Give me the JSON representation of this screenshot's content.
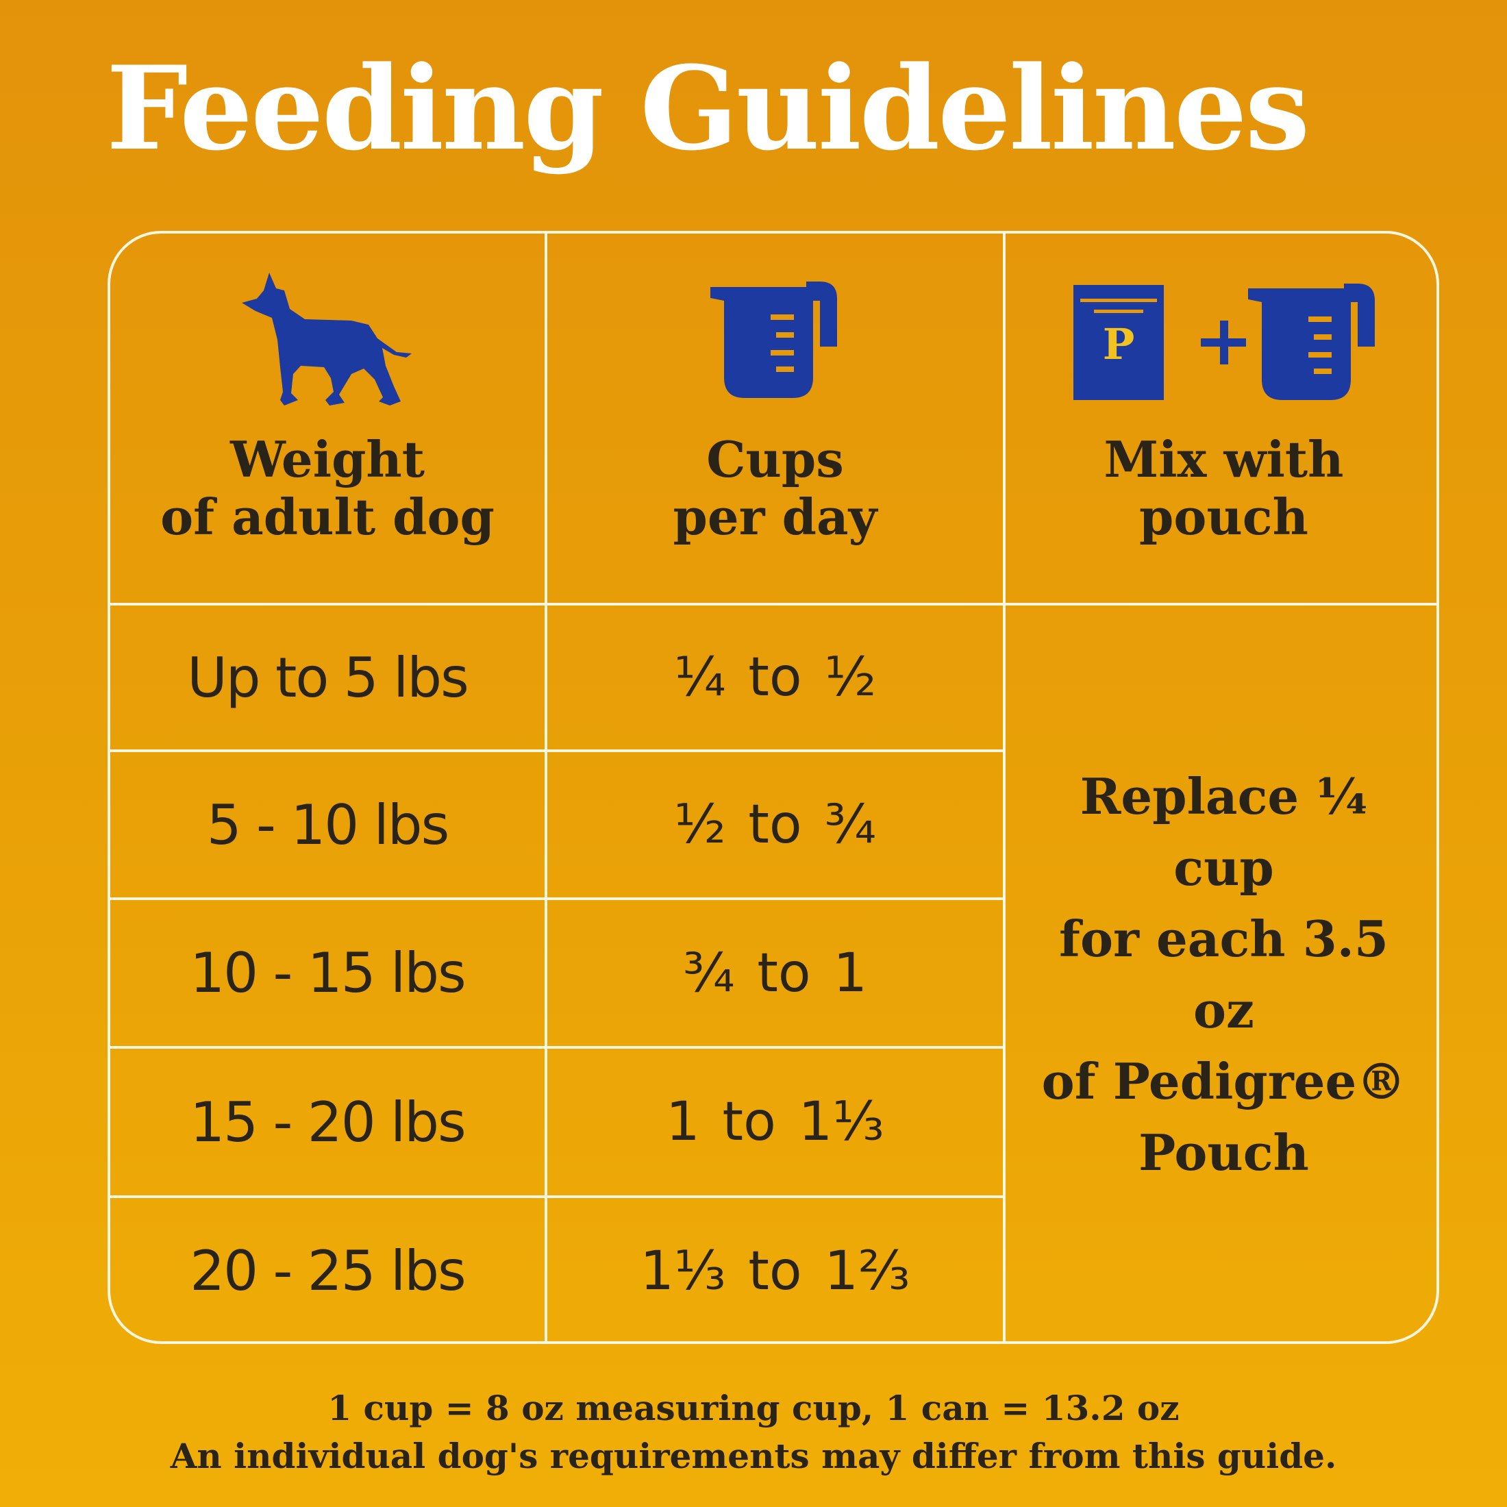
{
  "title": "Feeding Guidelines",
  "colors": {
    "background": "#e6990a",
    "icon": "#1c3aa0",
    "text": "#2a2418",
    "lines": "#fff6e0"
  },
  "headers": {
    "weight": {
      "icon": "dog-icon",
      "line1": "Weight",
      "line2": "of adult dog"
    },
    "cups": {
      "icon": "measuring-cup-icon",
      "line1": "Cups",
      "line2": "per day"
    },
    "mix": {
      "icon": "pouch-plus-cup-icon",
      "line1": "Mix with",
      "line2": "pouch",
      "pouch_letter": "P",
      "plus": "+"
    }
  },
  "rows": [
    {
      "weight": "Up to 5 lbs",
      "cups": "¼ to ½"
    },
    {
      "weight": "5 - 10 lbs",
      "cups": "½ to ¾"
    },
    {
      "weight": "10 - 15 lbs",
      "cups": "¾ to 1"
    },
    {
      "weight": "15 - 20 lbs",
      "cups": "1 to 1⅓"
    },
    {
      "weight": "20 - 25 lbs",
      "cups": "1⅓ to 1⅔"
    }
  ],
  "mix_note": {
    "line1": "Replace ¼ cup",
    "line2": "for each 3.5 oz",
    "line3": "of Pedigree®",
    "line4": "Pouch"
  },
  "footnote": {
    "line1": "1 cup = 8 oz measuring cup, 1 can = 13.2 oz",
    "line2": "An individual dog's requirements may differ from this guide."
  }
}
